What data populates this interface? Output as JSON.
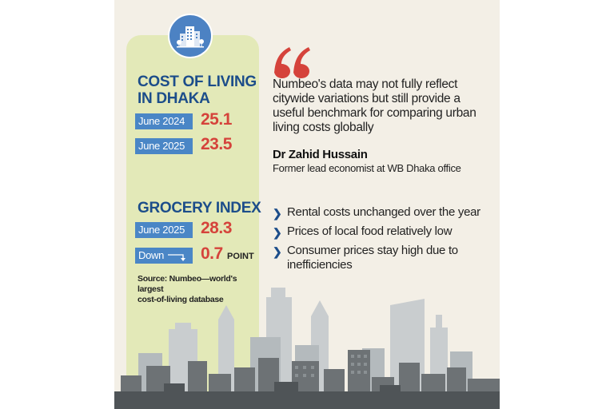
{
  "cost_of_living": {
    "title_line1": "COST OF LIVING",
    "title_line2": "IN DHAKA",
    "rows": [
      {
        "label": "June 2024",
        "value": "25.1"
      },
      {
        "label": "June 2025",
        "value": "23.5"
      }
    ]
  },
  "grocery_index": {
    "title": "GROCERY INDEX",
    "rows": [
      {
        "label": "June 2025",
        "value": "28.3"
      }
    ],
    "change": {
      "label": "Down",
      "value": "0.7",
      "unit": "POINT"
    }
  },
  "source": {
    "line1": "Source: Numbeo—world's largest",
    "line2": "cost-of-living database"
  },
  "quote": {
    "text": "Numbeo's data may not fully reflect citywide variations but still provide a useful benchmark for comparing urban living costs globally",
    "author": "Dr Zahid Hussain",
    "role": "Former lead economist at WB Dhaka office"
  },
  "bullets": [
    "Rental costs unchanged over the year",
    "Prices of local food relatively low",
    "Consumer prices stay high due to inefficiencies"
  ],
  "icons": {
    "badge": "city-buildings-icon",
    "quote": "quotation-mark-icon",
    "bullet": "chevron-right-icon",
    "trend": "down-arrow-icon"
  },
  "colors": {
    "heading_blue": "#1c4d8a",
    "label_blue": "#4a86c6",
    "value_red": "#d5433b",
    "panel_green": "#e3e9b8",
    "background": "#f3efe6"
  }
}
